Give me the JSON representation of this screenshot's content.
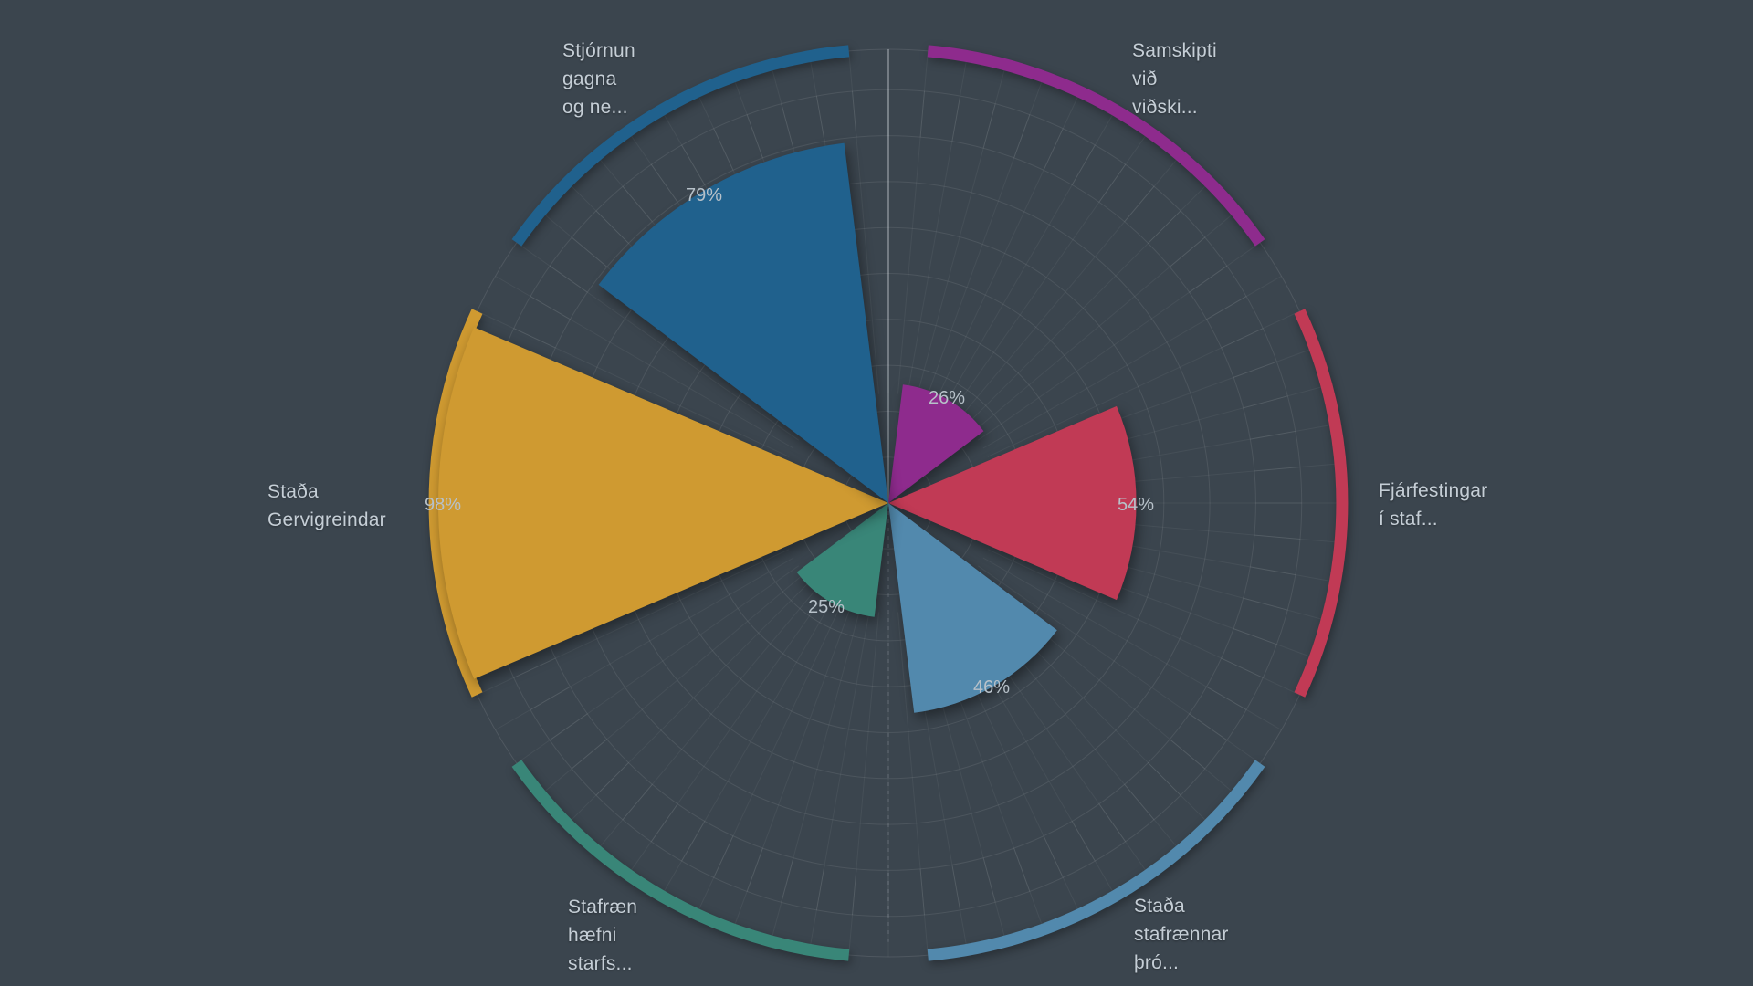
{
  "app": {
    "title": "Polar rose chart of digital-maturity survey results (Icelandic)",
    "chrome": "none — fullscreen chart only"
  },
  "colors": {
    "background": "#3b454e",
    "grid_line": "rgba(255,255,255,0.09)",
    "grid_spoke": "rgba(255,255,255,0.055)",
    "outer_axis_circle": "rgba(255,255,255,0.10)",
    "axis_line_north": "rgba(235,242,248,0.30)",
    "axis_line_south": "rgba(235,242,248,0.13)",
    "category_label": "#c5ced6",
    "value_label": "#b7c1c9"
  },
  "chart_data": {
    "type": "bar",
    "variant": "polar-rose-nightingale",
    "title": "",
    "unit": "%",
    "legend_position": "none",
    "radial_axis": {
      "min": 0,
      "max": 100,
      "ring_interval_percent": 10,
      "rings_visible": 9
    },
    "angle_axis": {
      "start": "top",
      "direction": "clockwise",
      "category_centers_deg": [
        30,
        90,
        150,
        210,
        270,
        330
      ],
      "bar_angular_width_deg": 46,
      "outer_arc_width_deg": 50
    },
    "grid": {
      "rings": true,
      "spokes_every_deg": 5
    },
    "categories": [
      {
        "label": "Samskipti\nvið\nviðski...",
        "value": 26,
        "value_label": "26%",
        "color": "#8e2b8d"
      },
      {
        "label": "Fjárfestingar\ní staf...",
        "value": 54,
        "value_label": "54%",
        "color": "#c13a55"
      },
      {
        "label": "Staða\nstafrænnar\nþró...",
        "value": 46,
        "value_label": "46%",
        "color": "#5289ad"
      },
      {
        "label": "Stafræn\nhæfni\nstarfs...",
        "value": 25,
        "value_label": "25%",
        "color": "#398678"
      },
      {
        "label": "Staða\nGervigreindar",
        "value": 98,
        "value_label": "98%",
        "color": "#cf9a31"
      },
      {
        "label": "Stjórnun\ngagna\nog ne...",
        "value": 79,
        "value_label": "79%",
        "color": "#20618d"
      }
    ]
  }
}
